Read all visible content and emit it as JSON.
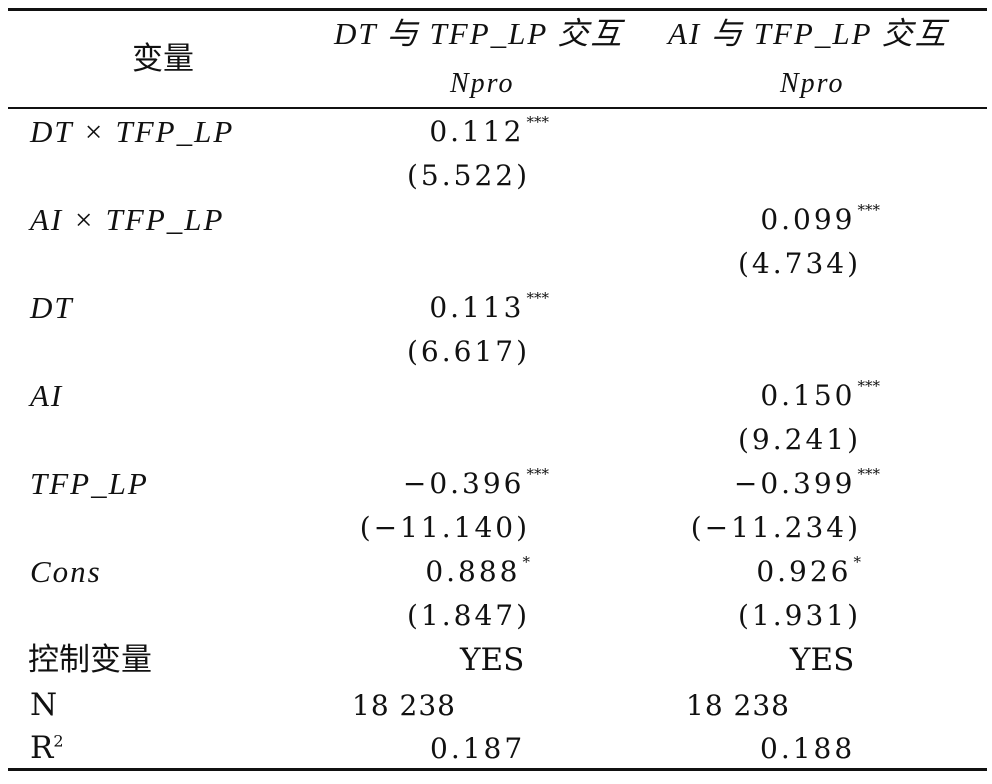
{
  "header": {
    "var_label": "变量",
    "col1_title": "DT 与 TFP_LP 交互",
    "col2_title": "AI 与 TFP_LP 交互",
    "col1_sub": "Npro",
    "col2_sub": "Npro"
  },
  "rows": [
    {
      "label": "DT × TFP_LP",
      "c1": "0.112",
      "c1_star": "***",
      "c1_t": "(5.522)",
      "c2": "",
      "c2_star": "",
      "c2_t": ""
    },
    {
      "label": "AI × TFP_LP",
      "c1": "",
      "c1_star": "",
      "c1_t": "",
      "c2": "0.099",
      "c2_star": "***",
      "c2_t": "(4.734)"
    },
    {
      "label": "DT",
      "c1": "0.113",
      "c1_star": "***",
      "c1_t": "(6.617)",
      "c2": "",
      "c2_star": "",
      "c2_t": ""
    },
    {
      "label": "AI",
      "c1": "",
      "c1_star": "",
      "c1_t": "",
      "c2": "0.150",
      "c2_star": "***",
      "c2_t": "(9.241)"
    },
    {
      "label": "TFP_LP",
      "c1": "−0.396",
      "c1_star": "***",
      "c1_t": "(−11.140)",
      "c2": "−0.399",
      "c2_star": "***",
      "c2_t": "(−11.234)"
    },
    {
      "label": "Cons",
      "c1": "0.888",
      "c1_star": "*",
      "c1_t": "(1.847)",
      "c2": "0.926",
      "c2_star": "*",
      "c2_t": "(1.931)"
    }
  ],
  "footer": {
    "controls_label": "控制变量",
    "controls_c1": "YES",
    "controls_c2": "YES",
    "n_label": "N",
    "n_c1": "18 238",
    "n_c2": "18 238",
    "r2_label": "R",
    "r2_sup": "2",
    "r2_c1": "0.187",
    "r2_c2": "0.188"
  }
}
